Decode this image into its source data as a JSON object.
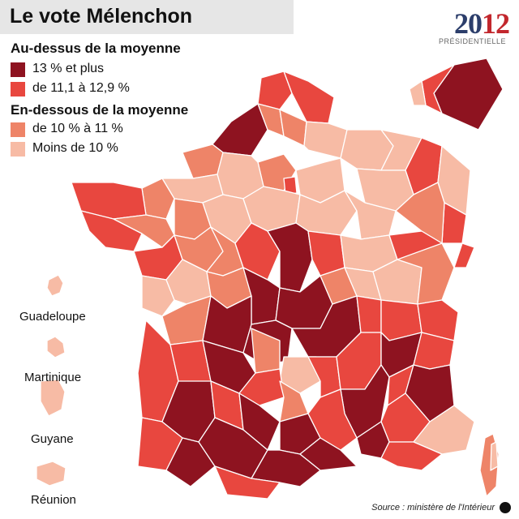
{
  "title": "Le vote Mélenchon",
  "badge": {
    "year_part1": "20",
    "year_part2": "12",
    "subtitle": "PRÉSIDENTIELLE"
  },
  "legend": {
    "above_heading": "Au-dessus de la moyenne",
    "below_heading": "En-dessous de la moyenne",
    "items": [
      {
        "label": "13 % et plus",
        "color": "#8e1320"
      },
      {
        "label": "de 11,1 à 12,9 %",
        "color": "#e8473f"
      },
      {
        "label": "de 10 % à 11 %",
        "color": "#ee8468"
      },
      {
        "label": "Moins de 10 %",
        "color": "#f7bba5"
      }
    ]
  },
  "overseas": [
    "Guadeloupe",
    "Martinique",
    "Guyane",
    "Réunion"
  ],
  "source": "Source : ministère de l'Intérieur",
  "colors": {
    "border": "#ffffff",
    "title_bg": "#e6e6e6"
  }
}
